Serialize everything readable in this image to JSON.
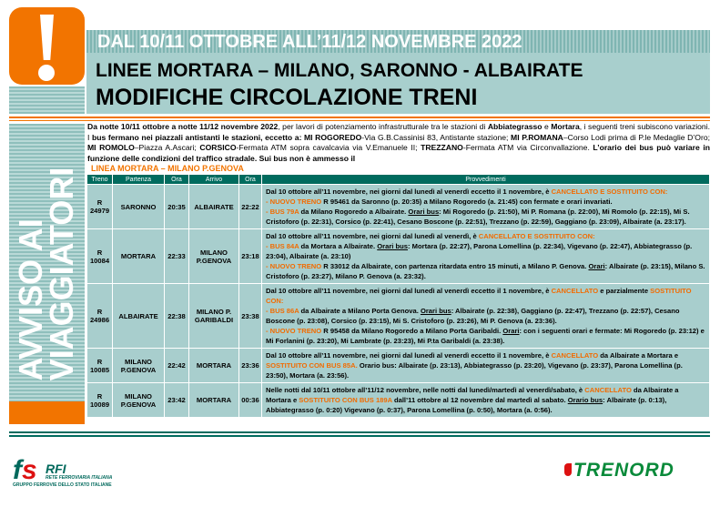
{
  "colors": {
    "orange": "#f27400",
    "teal": "#006b5e",
    "cell": "#a8cecd"
  },
  "header": {
    "icon": "exclamation-icon",
    "line1": "DAL 10/11 OTTOBRE ALL’11/12 NOVEMBRE 2022",
    "line2": "LINEE MORTARA – MILANO, SARONNO - ALBAIRATE",
    "line3": "MODIFICHE CIRCOLAZIONE TRENI"
  },
  "sidebar": {
    "line1": "AVVISO AI",
    "line2": "VIAGGIATORI"
  },
  "intro": [
    {
      "t": "Da notte 10/11 ottobre a notte 11/12 novembre 2022",
      "s": "b"
    },
    {
      "t": ", per lavori di potenziamento infrastrutturale tra le stazioni di "
    },
    {
      "t": "Abbiategrasso",
      "s": "b"
    },
    {
      "t": " e "
    },
    {
      "t": "Mortara",
      "s": "b"
    },
    {
      "t": ", i seguenti treni subiscono variazioni. I "
    },
    {
      "t": "bus fermano nei piazzali antistanti le stazioni, eccetto a: MI ROGOREDO",
      "s": "b"
    },
    {
      "t": "-Via G.B.Cassinisi 83, Antistante stazione; "
    },
    {
      "t": "MI P.ROMANA",
      "s": "b"
    },
    {
      "t": "–Corso Lodi prima di P.le Medaglie D’Oro; "
    },
    {
      "t": "MI ROMOLO",
      "s": "b"
    },
    {
      "t": "–Piazza A.Ascari; "
    },
    {
      "t": "CORSICO",
      "s": "b"
    },
    {
      "t": "-Fermata ATM sopra cavalcavia via V.Emanuele II; "
    },
    {
      "t": "TREZZANO",
      "s": "b"
    },
    {
      "t": "-Fermata ATM via Circonvallazione. "
    },
    {
      "t": "L’orario dei bus può variare in funzione delle condizioni del traffico stradale. Sui bus non è ammesso il",
      "s": "b"
    }
  ],
  "overlay_label": "LINEA MORTARA – MILANO P.GENOVA",
  "table": {
    "headers": [
      "Treno",
      "Partenza",
      "Ora",
      "Arrivo",
      "Ora",
      "Provvedimenti"
    ],
    "rows": [
      {
        "treno": "R 24979",
        "partenza": "SARONNO",
        "ora_p": "20:35",
        "arrivo": "ALBAIRATE",
        "ora_a": "22:22",
        "prov": [
          {
            "t": "Dal 10 ottobre all’11 novembre, nei giorni dal lunedì al venerdì eccetto il 1 novembre, è "
          },
          {
            "t": "CANCELLATO E SOSTITUITO CON:",
            "s": "o"
          },
          {
            "br": 1
          },
          {
            "t": "- NUOVO TRENO",
            "s": "o"
          },
          {
            "t": " R 95461 da Saronno (p. 20:35) a Milano Rogoredo (a. 21:45) con fermate e orari invariati."
          },
          {
            "br": 1
          },
          {
            "t": "- BUS 79A",
            "s": "o"
          },
          {
            "t": " da Milano Rogoredo a Albairate. "
          },
          {
            "t": "Orari bus",
            "s": "u"
          },
          {
            "t": ": Mi Rogoredo (p. 21:50), Mi P. Romana (p. 22:00), Mi Romolo (p. 22:15),  Mi S. Cristoforo (p. 22:31), Corsico (p. 22:41), Cesano Boscone (p. 22:51), Trezzano (p. 22:59),  Gaggiano (p. 23:09), Albairate (a. 23:17)."
          }
        ]
      },
      {
        "treno": "R 10084",
        "partenza": "MORTARA",
        "ora_p": "22:33",
        "arrivo": "MILANO P.GENOVA",
        "ora_a": "23:18",
        "prov": [
          {
            "t": "Dal 10 ottobre all’11 novembre, nei giorni dal lunedì al venerdì, è "
          },
          {
            "t": "CANCELLATO E SOSTITUITO CON:",
            "s": "o"
          },
          {
            "br": 1
          },
          {
            "t": "- BUS 84A",
            "s": "o"
          },
          {
            "t": " da Mortara a Albairate. "
          },
          {
            "t": "Orari bus",
            "s": "u"
          },
          {
            "t": ": Mortara (p. 22:27), Parona Lomellina (p. 22:34), Vigevano (p. 22:47), Abbiategrasso (p. 23:04), Albairate (a. 23:10)"
          },
          {
            "br": 1
          },
          {
            "t": "- NUOVO TRENO",
            "s": "o"
          },
          {
            "t": " R 33012 da Albairate, con partenza ritardata entro 15 minuti,  a Milano P. Genova. "
          },
          {
            "t": "Orari",
            "s": "u"
          },
          {
            "t": ": Albairate (p. 23:15), Milano S. Cristoforo (p. 23:27), Milano P. Genova (a. 23:32)."
          }
        ]
      },
      {
        "treno": "R 24986",
        "partenza": "ALBAIRATE",
        "ora_p": "22:38",
        "arrivo": "MILANO P. GARIBALDI",
        "ora_a": "23:38",
        "prov": [
          {
            "t": "Dal 10 ottobre all’11 novembre, nei giorni dal lunedì al venerdì eccetto il 1 novembre, è "
          },
          {
            "t": "CANCELLATO",
            "s": "o"
          },
          {
            "t": " e parzialmente "
          },
          {
            "t": "SOSTITUITO CON:",
            "s": "o"
          },
          {
            "br": 1
          },
          {
            "t": "- BUS 86A",
            "s": "o"
          },
          {
            "t": " da Albairate a Milano Porta Genova. "
          },
          {
            "t": "Orari bus",
            "s": "u"
          },
          {
            "t": ": Albairate (p. 22:38), Gaggiano (p. 22:47), Trezzano (p. 22:57), Cesano Boscone (p. 23:08), Corsico (p. 23:15), Mi S. Cristoforo (p. 23:26),  Mi P. Genova (a. 23:36)."
          },
          {
            "br": 1
          },
          {
            "t": "- NUOVO TRENO",
            "s": "o"
          },
          {
            "t": " R 95458 da Milano Rogoredo a Milano Porta Garibaldi. "
          },
          {
            "t": "Orari",
            "s": "u"
          },
          {
            "t": ":  con i seguenti orari e fermate: Mi Rogoredo (p. 23:12) e Mi Forlanini (p. 23:20), Mi Lambrate (p. 23:23), Mi P.ta Garibaldi (a. 23:38)."
          }
        ]
      },
      {
        "treno": "R 10085",
        "partenza": "MILANO P.GENOVA",
        "ora_p": "22:42",
        "arrivo": "MORTARA",
        "ora_a": "23:36",
        "prov": [
          {
            "t": "Dal 10 ottobre all’11 novembre, nei giorni dal lunedì al venerdì eccetto il 1 novembre, è "
          },
          {
            "t": "CANCELLATO",
            "s": "o"
          },
          {
            "t": " da Albairate a Mortara e "
          },
          {
            "t": "SOSTITUITO CON BUS 85A.",
            "s": "o"
          },
          {
            "t": " Orario bus: Albairate (p. 23:13), Abbiategrasso (p. 23:20), Vigevano (p. 23:37), Parona Lomellina (p. 23:50), Mortara  (a. 23:56)."
          }
        ]
      },
      {
        "treno": "R 10089",
        "partenza": "MILANO P.GENOVA",
        "ora_p": "23:42",
        "arrivo": "MORTARA",
        "ora_a": "00:36",
        "prov": [
          {
            "t": "Nelle notti dal 10/11 ottobre all’11/12 novembre, nelle notti dal lunedì/martedì al venerdì/sabato, è "
          },
          {
            "t": "CANCELLATO",
            "s": "o"
          },
          {
            "t": " da Albairate a Mortara e "
          },
          {
            "t": "SOSTITUITO CON BUS 189A",
            "s": "o"
          },
          {
            "t": " dall’11 ottobre al 12 novembre dal martedì al sabato. "
          },
          {
            "t": "Orario bus",
            "s": "u"
          },
          {
            "t": ": Albairate (p. 0:13), Abbiategrasso (p. 0:20) Vigevano (p. 0:37), Parona Lomellina (p. 0:50), Mortara (a. 0:56)."
          }
        ]
      }
    ]
  },
  "footer": {
    "rfi_logo": "RFI",
    "rfi_sub": "RETE FERROVIARIA ITALIANA",
    "rfi_group": "GRUPPO FERROVIE DELLO STATO ITALIANE",
    "trenord_logo": "TRENORD"
  }
}
